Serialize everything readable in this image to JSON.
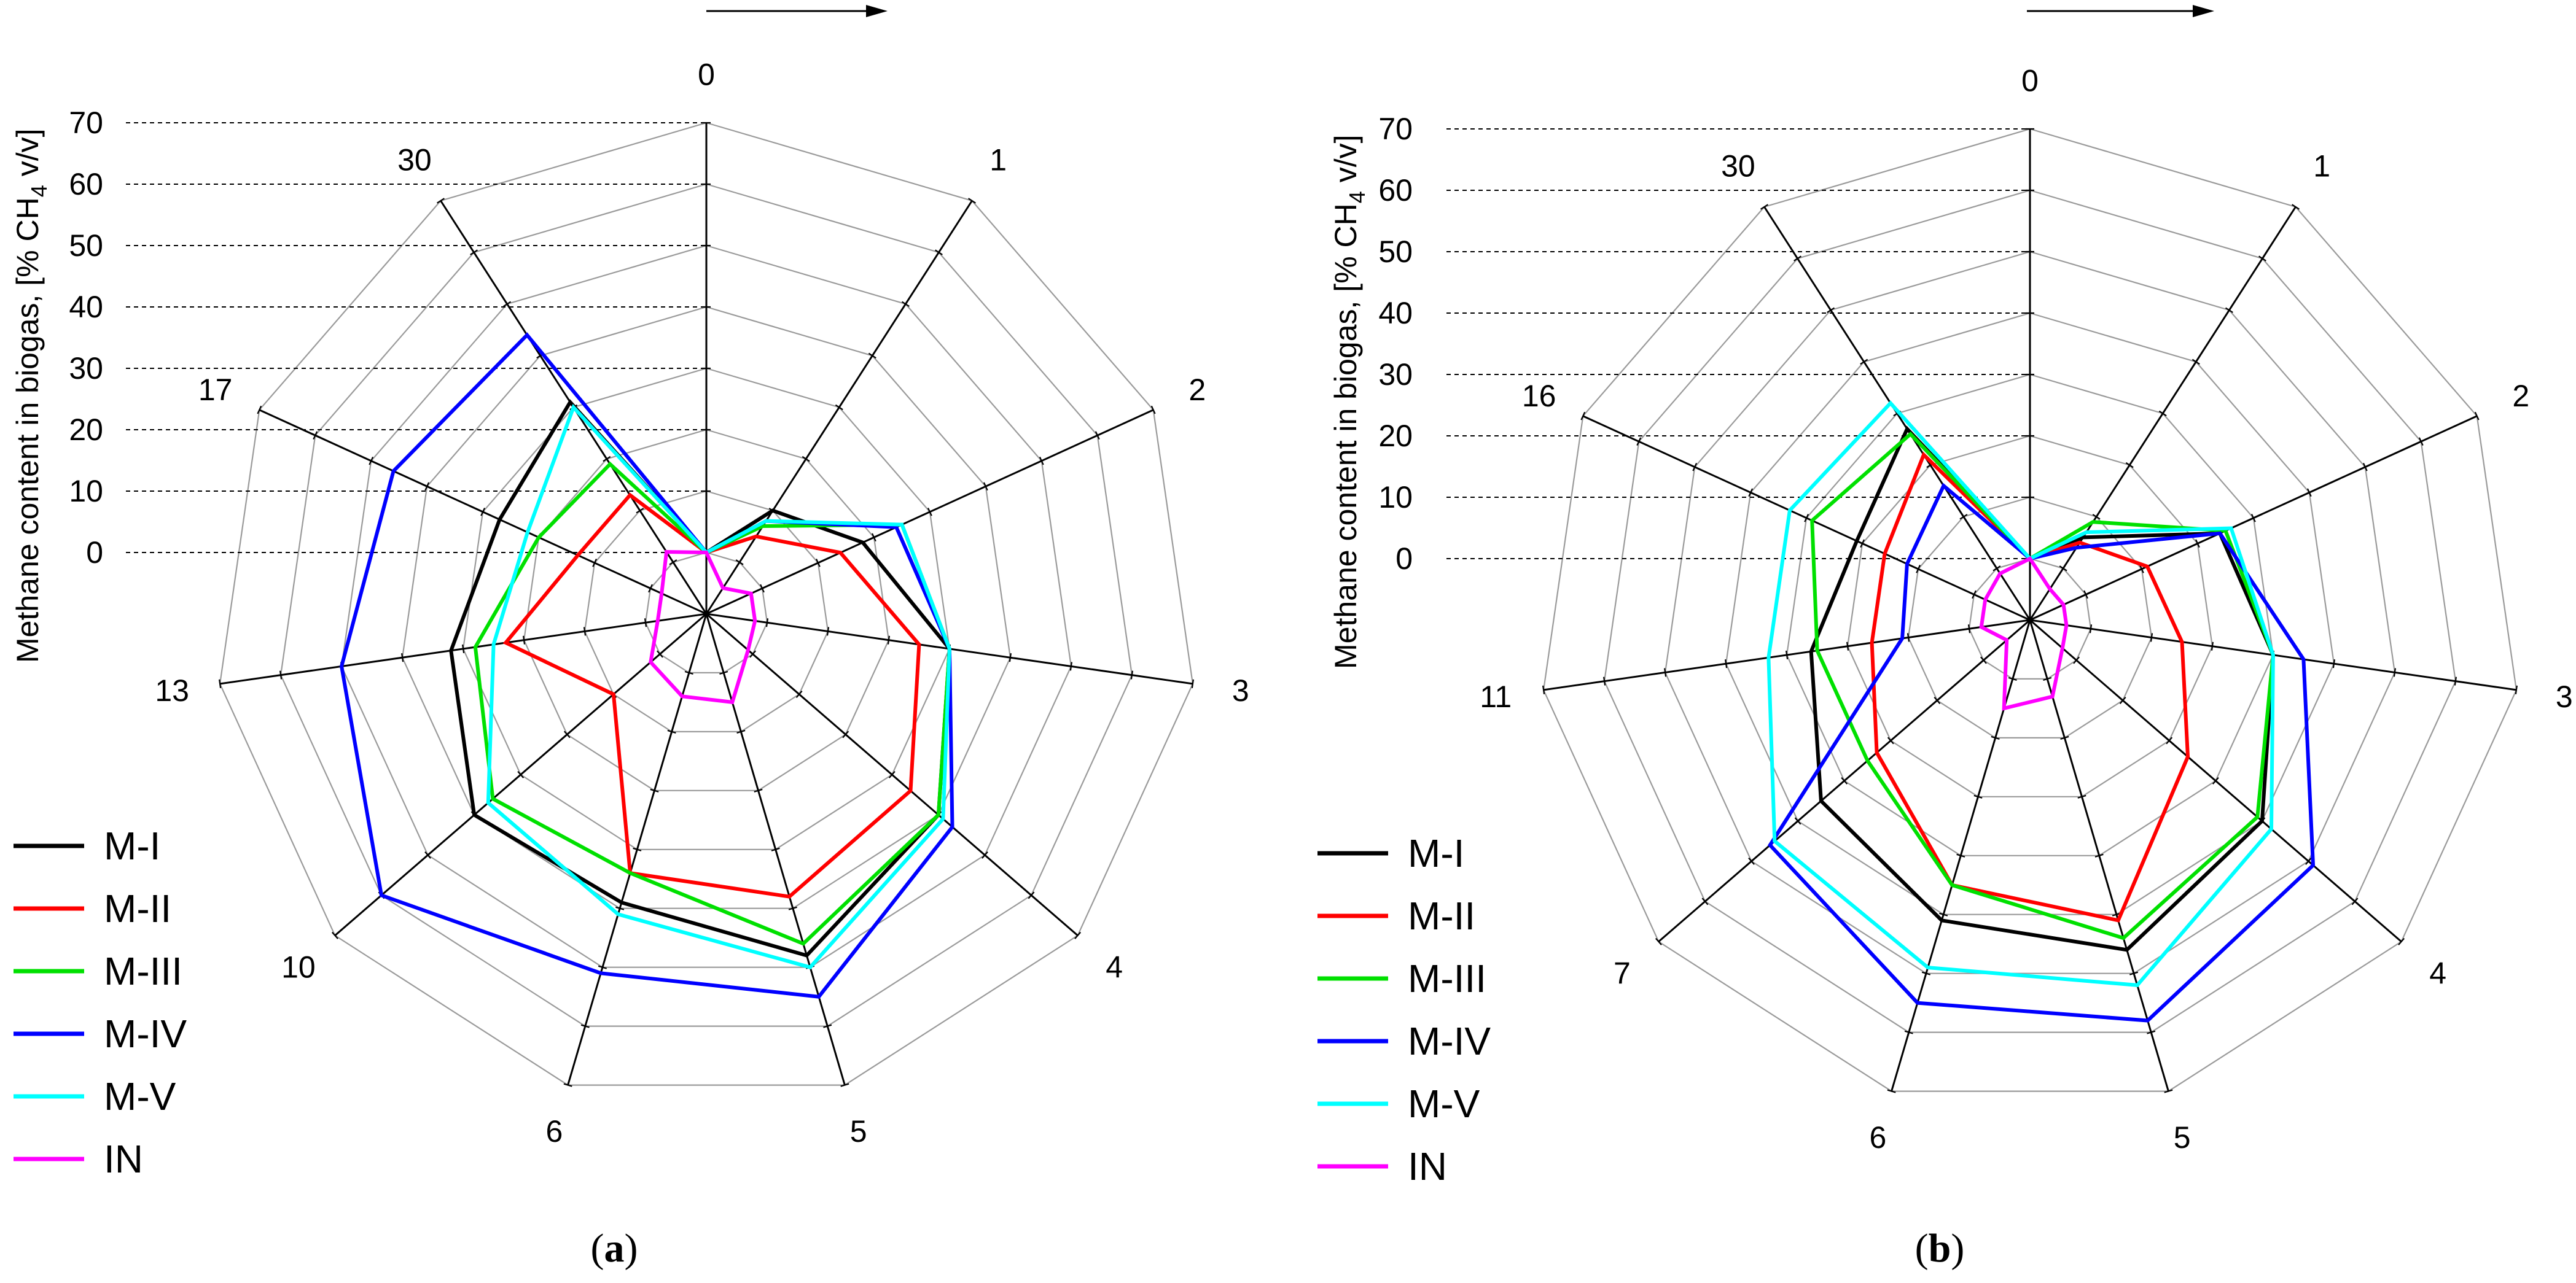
{
  "figure": {
    "colors": {
      "M-I": "#000000",
      "M-II": "#ff0000",
      "M-III": "#00e000",
      "M-IV": "#0000ff",
      "M-V": "#00ffff",
      "IN": "#ff00ff",
      "grid": "#9a9a9a",
      "spoke": "#000000"
    }
  },
  "chart_data": [
    {
      "type": "radar",
      "panel_label": "a",
      "ylabel": "Methane content in biogas, [% CH4 v/v]",
      "ylabel_main": "Methane content in biogas, [% CH",
      "ylabel_sub": "4",
      "ylabel_tail": " v/v]",
      "rlim": [
        -10,
        70
      ],
      "r_ticks": [
        0,
        10,
        20,
        30,
        40,
        50,
        60,
        70
      ],
      "r_tick_labels": [
        "0",
        "10",
        "20",
        "30",
        "40",
        "50",
        "60",
        "70"
      ],
      "categories": [
        "0",
        "1",
        "2",
        "3",
        "4",
        "5",
        "6",
        "10",
        "13",
        "17",
        "30"
      ],
      "series": [
        {
          "name": "M-I",
          "values": [
            0,
            10,
            18,
            30,
            40,
            48,
            39,
            40,
            32,
            27,
            31
          ]
        },
        {
          "name": "M-II",
          "values": [
            0,
            5,
            14,
            25,
            34,
            38,
            34,
            10,
            23,
            13,
            13
          ]
        },
        {
          "name": "M-III",
          "values": [
            0,
            7,
            25,
            30,
            40,
            46,
            34,
            36,
            28,
            20,
            19
          ]
        },
        {
          "name": "M-IV",
          "values": [
            0,
            8,
            24,
            30,
            43,
            55,
            51,
            60,
            50,
            46,
            44
          ]
        },
        {
          "name": "M-V",
          "values": [
            0,
            8,
            25,
            30,
            41,
            50,
            41,
            37,
            25,
            22,
            30
          ]
        },
        {
          "name": "IN",
          "values": [
            0,
            -5,
            -2,
            -2,
            -1,
            5,
            4,
            2,
            -2,
            -2,
            2
          ]
        }
      ]
    },
    {
      "type": "radar",
      "panel_label": "b",
      "ylabel": "Methane content in biogas, [% CH4 v/v]",
      "ylabel_main": "Methane content in biogas, [% CH",
      "ylabel_sub": "4",
      "ylabel_tail": " v/v]",
      "rlim": [
        -10,
        70
      ],
      "r_ticks": [
        0,
        10,
        20,
        30,
        40,
        50,
        60,
        70
      ],
      "r_tick_labels": [
        "0",
        "10",
        "20",
        "30",
        "40",
        "50",
        "60",
        "70"
      ],
      "categories": [
        "0",
        "1",
        "2",
        "3",
        "4",
        "5",
        "6",
        "7",
        "11",
        "16",
        "30"
      ],
      "series": [
        {
          "name": "M-I",
          "values": [
            0,
            6,
            24,
            30,
            40,
            46,
            41,
            35,
            26,
            21,
            27
          ]
        },
        {
          "name": "M-II",
          "values": [
            0,
            5,
            11,
            15,
            24,
            41,
            35,
            23,
            16,
            16,
            22
          ]
        },
        {
          "name": "M-III",
          "values": [
            0,
            9,
            25,
            30,
            39,
            44,
            35,
            25,
            25,
            29,
            26
          ]
        },
        {
          "name": "M-IV",
          "values": [
            0,
            4,
            24,
            35,
            51,
            58,
            55,
            46,
            11,
            12,
            16
          ]
        },
        {
          "name": "M-V",
          "values": [
            0,
            7,
            26,
            30,
            42,
            52,
            49,
            45,
            33,
            33,
            32
          ]
        },
        {
          "name": "IN",
          "values": [
            0,
            -4,
            -4,
            -4,
            -3,
            3,
            5,
            -5,
            -2,
            -2,
            -1
          ]
        }
      ]
    }
  ],
  "legend": {
    "labels": [
      "M-I",
      "M-II",
      "M-III",
      "M-IV",
      "M-V",
      "IN"
    ]
  },
  "captions": {
    "open_paren": "(",
    "close_paren": ")"
  }
}
